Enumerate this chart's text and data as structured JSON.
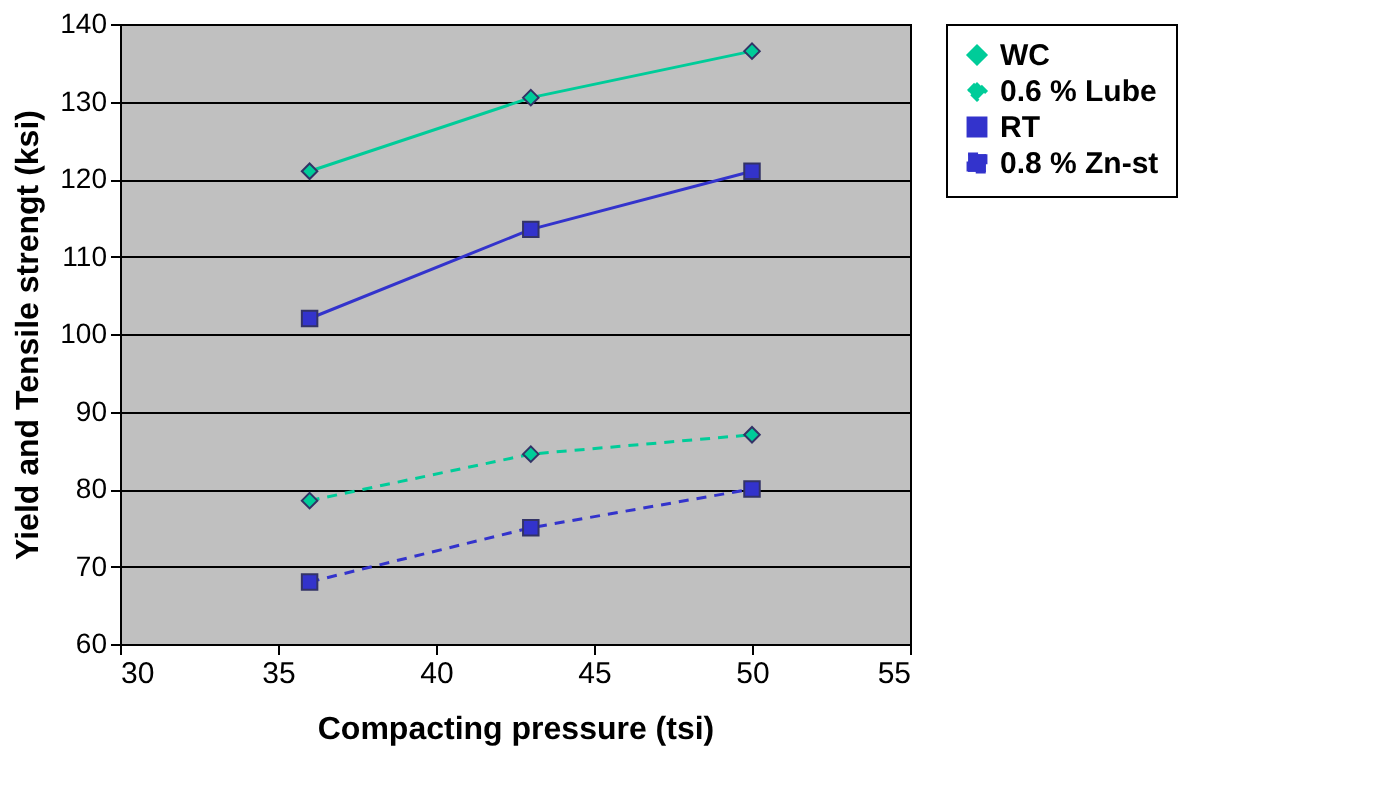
{
  "chart_data": {
    "type": "line",
    "xlabel": "Compacting pressure (tsi)",
    "ylabel": "Yield and Tensile strengt (ksi)",
    "xlim": [
      30,
      55
    ],
    "xticks": [
      30,
      35,
      40,
      45,
      50,
      55
    ],
    "ylim": [
      60,
      140
    ],
    "yticks": [
      60,
      70,
      80,
      90,
      100,
      110,
      120,
      130,
      140
    ],
    "grid": "y",
    "legend": "right",
    "series": [
      {
        "name": "WC",
        "color": "#00cc99",
        "x": [
          36,
          43,
          50
        ],
        "values": [
          121,
          130.5,
          136.5
        ],
        "marker": "diamond",
        "line_style": "solid"
      },
      {
        "name": "0.6 % Lube",
        "color": "#00cc99",
        "x": [
          36,
          43,
          50
        ],
        "values": [
          78.5,
          84.5,
          87
        ],
        "marker": "diamond",
        "line_style": "dashed"
      },
      {
        "name": "RT",
        "color": "#3333cc",
        "x": [
          36,
          43,
          50
        ],
        "values": [
          102,
          113.5,
          121
        ],
        "marker": "square",
        "line_style": "solid"
      },
      {
        "name": "0.8 % Zn-st",
        "color": "#3333cc",
        "x": [
          36,
          43,
          50
        ],
        "values": [
          68,
          75,
          80
        ],
        "marker": "square",
        "line_style": "dashed"
      }
    ]
  }
}
